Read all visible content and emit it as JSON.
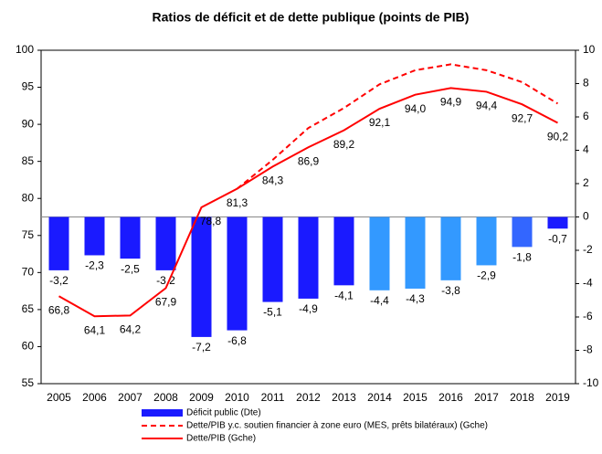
{
  "chart_data": {
    "type": "combo",
    "title": "Ratios de déficit et de dette publique (points de PIB)",
    "categories": [
      "2005",
      "2006",
      "2007",
      "2008",
      "2009",
      "2010",
      "2011",
      "2012",
      "2013",
      "2014",
      "2015",
      "2016",
      "2017",
      "2018",
      "2019"
    ],
    "ylim": [
      55,
      100
    ],
    "yticks": [
      55,
      60,
      65,
      70,
      75,
      80,
      85,
      90,
      95,
      100
    ],
    "y2lim": [
      -10,
      10
    ],
    "y2ticks": [
      -10,
      -8,
      -6,
      -4,
      -2,
      0,
      2,
      4,
      6,
      8,
      10
    ],
    "series": [
      {
        "name": "Déficit public (Dte)",
        "type": "bar",
        "axis": "y2",
        "color": "#1a1aff",
        "colors": [
          "#1a1aff",
          "#1a1aff",
          "#1a1aff",
          "#1a1aff",
          "#1a1aff",
          "#1a1aff",
          "#1a1aff",
          "#1a1aff",
          "#1a1aff",
          "#3399ff",
          "#3399ff",
          "#3399ff",
          "#3399ff",
          "#3366ff",
          "#1a1aff"
        ],
        "values": [
          -3.2,
          -2.3,
          -2.5,
          -3.2,
          -7.2,
          -6.8,
          -5.1,
          -4.9,
          -4.1,
          -4.4,
          -4.3,
          -3.8,
          -2.9,
          -1.8,
          -0.7
        ],
        "value_labels": [
          "-3,2",
          "-2,3",
          "-2,5",
          "-3,2",
          "-7,2",
          "-6,8",
          "-5,1",
          "-4,9",
          "-4,1",
          "-4,4",
          "-4,3",
          "-3,8",
          "-2,9",
          "-1,8",
          "-0,7"
        ]
      },
      {
        "name": "Dette/PIB y.c. soutien financier à zone euro (MES, prêts bilatéraux) (Gche)",
        "type": "line",
        "line_style": "dashed",
        "color": "#ff0000",
        "values": [
          null,
          null,
          null,
          null,
          null,
          81.3,
          85.2,
          89.5,
          92.2,
          95.4,
          97.3,
          98.1,
          97.3,
          95.7,
          92.8
        ]
      },
      {
        "name": "Dette/PIB (Gche)",
        "type": "line",
        "line_style": "solid",
        "color": "#ff0000",
        "values": [
          66.8,
          64.1,
          64.2,
          67.9,
          78.8,
          81.3,
          84.3,
          86.9,
          89.2,
          92.1,
          94.0,
          94.9,
          94.4,
          92.7,
          90.2
        ],
        "value_labels": [
          "66,8",
          "64,1",
          "64,2",
          "67,9",
          "78,8",
          "81,3",
          "84,3",
          "86,9",
          "89,2",
          "92,1",
          "94,0",
          "94,9",
          "94,4",
          "92,7",
          "90,2"
        ]
      }
    ]
  }
}
